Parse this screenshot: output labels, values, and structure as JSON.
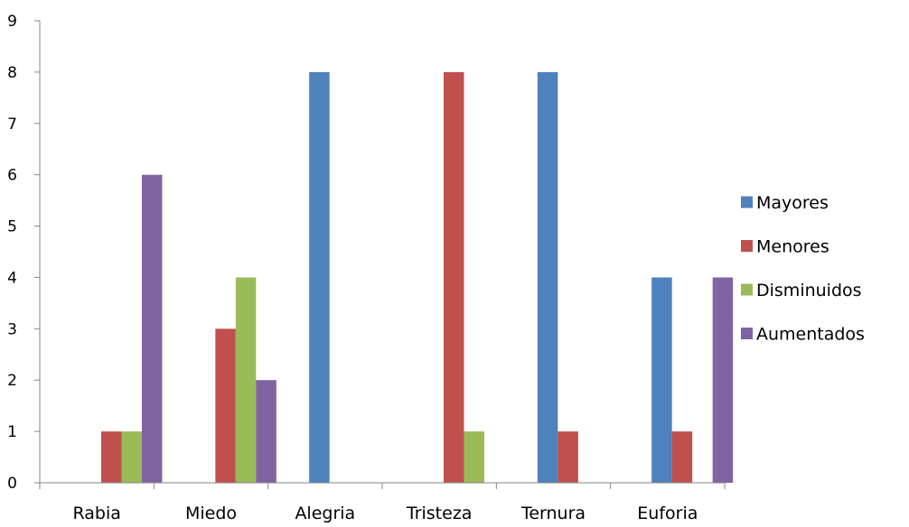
{
  "chart_data": {
    "type": "bar",
    "categories": [
      "Rabia",
      "Miedo",
      "Alegria",
      "Tristeza",
      "Ternura",
      "Euforia"
    ],
    "series": [
      {
        "name": "Mayores",
        "color": "#4F81BD",
        "values": [
          0,
          0,
          8,
          0,
          8,
          4
        ]
      },
      {
        "name": "Menores",
        "color": "#C0504D",
        "values": [
          1,
          3,
          0,
          8,
          1,
          1
        ]
      },
      {
        "name": "Disminuidos",
        "color": "#9BBB59",
        "values": [
          1,
          4,
          0,
          1,
          0,
          0
        ]
      },
      {
        "name": "Aumentados",
        "color": "#8064A2",
        "values": [
          6,
          2,
          0,
          0,
          0,
          4
        ]
      }
    ],
    "ylim": [
      0,
      9
    ],
    "yticks": [
      "0",
      "1",
      "2",
      "3",
      "4",
      "5",
      "6",
      "7",
      "8",
      "9"
    ],
    "grid": false,
    "legend_position": "right"
  }
}
